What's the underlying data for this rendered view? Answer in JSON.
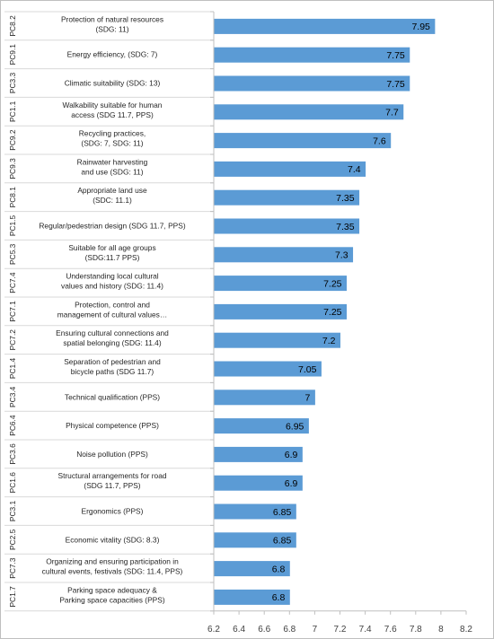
{
  "chart_data": {
    "type": "bar",
    "orientation": "horizontal",
    "title": "",
    "xlabel": "",
    "ylabel": "",
    "xlim": [
      6.2,
      8.2
    ],
    "x_ticks": [
      "6.2",
      "6.4",
      "6.6",
      "6.8",
      "7",
      "7.2",
      "7.4",
      "7.6",
      "7.8",
      "8",
      "8.2"
    ],
    "grid": false,
    "legend": "none",
    "bar_color": "#5B9BD5",
    "categories": [
      {
        "code": "PC8.2",
        "lines": [
          "Protection of natural resources",
          "(SDG: 11)"
        ]
      },
      {
        "code": "PC9.1",
        "lines": [
          "Energy efficiency, (SDG: 7)"
        ]
      },
      {
        "code": "PC3.3",
        "lines": [
          "Climatic suitability (SDG: 13)"
        ]
      },
      {
        "code": "PC1.1",
        "lines": [
          "Walkability suitable for human",
          "access (SDG 11.7, PPS)"
        ]
      },
      {
        "code": "PC9.2",
        "lines": [
          "Recycling practices,",
          "(SDG: 7, SDG: 11)"
        ]
      },
      {
        "code": "PC9.3",
        "lines": [
          "Rainwater harvesting",
          "and use (SDG: 11)"
        ]
      },
      {
        "code": "PC8.1",
        "lines": [
          "Appropriate land use",
          "(SDC: 11.1)"
        ]
      },
      {
        "code": "PC1.5",
        "lines": [
          "Regular/pedestrian design (SDG 11.7, PPS)"
        ]
      },
      {
        "code": "PC5.3",
        "lines": [
          "Suitable for all age groups",
          "(SDG:11.7 PPS)"
        ]
      },
      {
        "code": "PC7.4",
        "lines": [
          "Understanding local cultural",
          "values and history  (SDG: 11.4)"
        ]
      },
      {
        "code": "PC7.1",
        "lines": [
          "Protection, control and",
          "management of cultural values…"
        ]
      },
      {
        "code": "PC7.2",
        "lines": [
          "Ensuring cultural connections and",
          "spatial belonging (SDG: 11.4)"
        ]
      },
      {
        "code": "PC1.4",
        "lines": [
          "Separation  of pedestrian and",
          "bicycle paths (SDG 11.7)"
        ]
      },
      {
        "code": "PC3.4",
        "lines": [
          "Technical qualification (PPS)"
        ]
      },
      {
        "code": "PC6.4",
        "lines": [
          "Physical competence (PPS)"
        ]
      },
      {
        "code": "PC3.6",
        "lines": [
          "Noise pollution (PPS)"
        ]
      },
      {
        "code": "PC1.6",
        "lines": [
          "Structural arrangements  for road",
          "(SDG 11.7, PPS)"
        ]
      },
      {
        "code": "PC3.1",
        "lines": [
          "Ergonomics (PPS)"
        ]
      },
      {
        "code": "PC2.5",
        "lines": [
          "Economic vitality (SDG: 8.3)"
        ]
      },
      {
        "code": "PC7.3",
        "lines": [
          "Organizing and ensuring participation in",
          "cultural events, festivals (SDG: 11.4, PPS)"
        ]
      },
      {
        "code": "PC1.7",
        "lines": [
          "Parking  space adequacy &",
          "Parking space capacities (PPS)"
        ]
      }
    ],
    "values": [
      7.95,
      7.75,
      7.75,
      7.7,
      7.6,
      7.4,
      7.35,
      7.35,
      7.3,
      7.25,
      7.25,
      7.2,
      7.05,
      7,
      6.95,
      6.9,
      6.9,
      6.85,
      6.85,
      6.8,
      6.8
    ],
    "data_labels": [
      "7.95",
      "7.75",
      "7.75",
      "7.7",
      "7.6",
      "7.4",
      "7.35",
      "7.35",
      "7.3",
      "7.25",
      "7.25",
      "7.2",
      "7.05",
      "7",
      "6.95",
      "6.9",
      "6.9",
      "6.85",
      "6.85",
      "6.8",
      "6.8"
    ]
  }
}
